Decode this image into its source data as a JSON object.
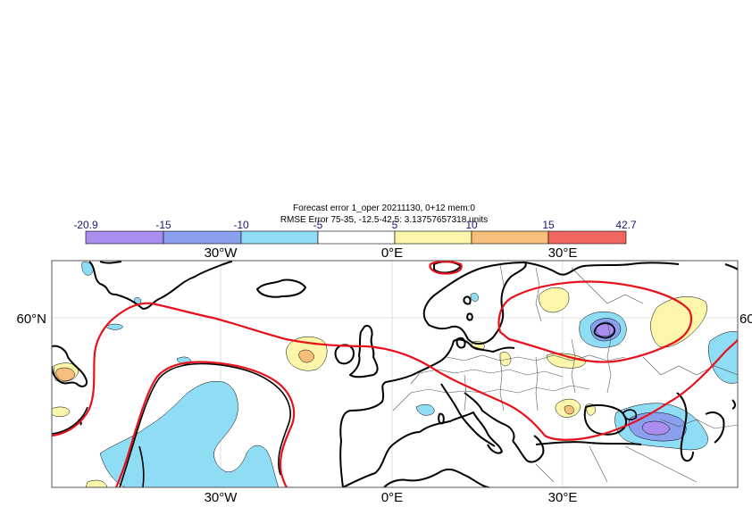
{
  "title": {
    "line1": "Forecast error  1_oper 20211130, 0+12 mem:0",
    "line2": "RMSE Error 75-35, -12.5-42.5: 3.13757657318 units"
  },
  "colorbar": {
    "labels": [
      "-20.9",
      "-15",
      "-10",
      "-5",
      "5",
      "10",
      "15",
      "42.7"
    ],
    "colors": [
      "#a98ef0",
      "#8aa0ee",
      "#8fdcf5",
      "#ffffff",
      "#fbf6aa",
      "#f7bd7a",
      "#f26660"
    ]
  },
  "axes": {
    "top_lon_labels": [
      "30°W",
      "0°E",
      "30°E"
    ],
    "bottom_lon_labels": [
      "30°W",
      "0°E",
      "30°E"
    ],
    "lat_left": "60°N",
    "lat_right": "60"
  }
}
